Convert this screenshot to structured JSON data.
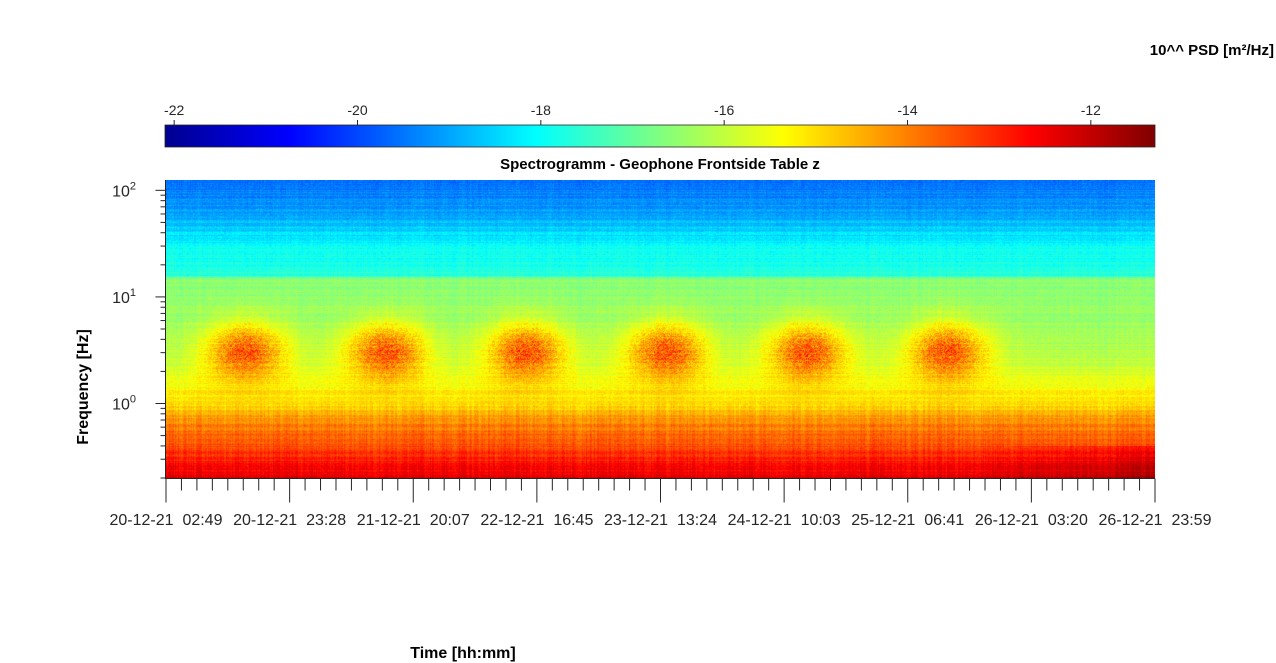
{
  "chart_data": {
    "type": "heatmap",
    "title": "Spectrogramm - Geophone Frontside Table z",
    "xlabel": "Time [hh:mm]",
    "ylabel": "Frequency [Hz]",
    "colorbar": {
      "label": "10^^ PSD [m²/Hz]",
      "ticks": [
        "-22",
        "-20",
        "-18",
        "-16",
        "-14",
        "-12"
      ],
      "tick_values": [
        -22,
        -20,
        -18,
        -16,
        -14,
        -12
      ],
      "range": [
        -22.1,
        -11.3
      ],
      "colormap": "jet",
      "location": "top"
    },
    "x_ticks": [
      "20-12-21  02:49",
      "20-12-21  23:28",
      "21-12-21  20:07",
      "22-12-21  16:45",
      "23-12-21  13:24",
      "24-12-21  10:03",
      "25-12-21  06:41",
      "26-12-21  03:20",
      "26-12-21  23:59"
    ],
    "y_ticks": [
      {
        "base": "10",
        "exp": "0",
        "value": 1
      },
      {
        "base": "10",
        "exp": "1",
        "value": 10
      },
      {
        "base": "10",
        "exp": "2",
        "value": 100
      }
    ],
    "y_scale": "log",
    "ylim": [
      0.2,
      125
    ],
    "grid": false,
    "approx_spectrum_log10_psd": {
      "freq_hz": [
        0.2,
        0.4,
        0.7,
        1.0,
        2.0,
        3.0,
        5.0,
        10.0,
        15.0,
        16.0,
        30.0,
        60.0,
        125.0
      ],
      "background": [
        -12.3,
        -13.4,
        -14.2,
        -15.0,
        -15.8,
        -16.2,
        -16.3,
        -16.5,
        -16.6,
        -17.6,
        -18.0,
        -19.0,
        -19.6
      ],
      "activity_peak_3hz": -13.3
    },
    "active_periods": [
      "20-12-21",
      "21-12-21",
      "22-12-21",
      "23-12-21",
      "24-12-21",
      "25-12-21"
    ]
  },
  "colors": {
    "axis": "#262626",
    "background": "#ffffff"
  }
}
